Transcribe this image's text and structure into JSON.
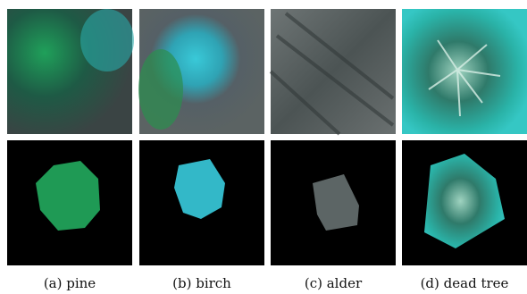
{
  "panels": [
    {
      "caption": "(a) pine"
    },
    {
      "caption": "(b) birch"
    },
    {
      "caption": "(c) alder"
    },
    {
      "caption": "(d) dead tree"
    }
  ]
}
